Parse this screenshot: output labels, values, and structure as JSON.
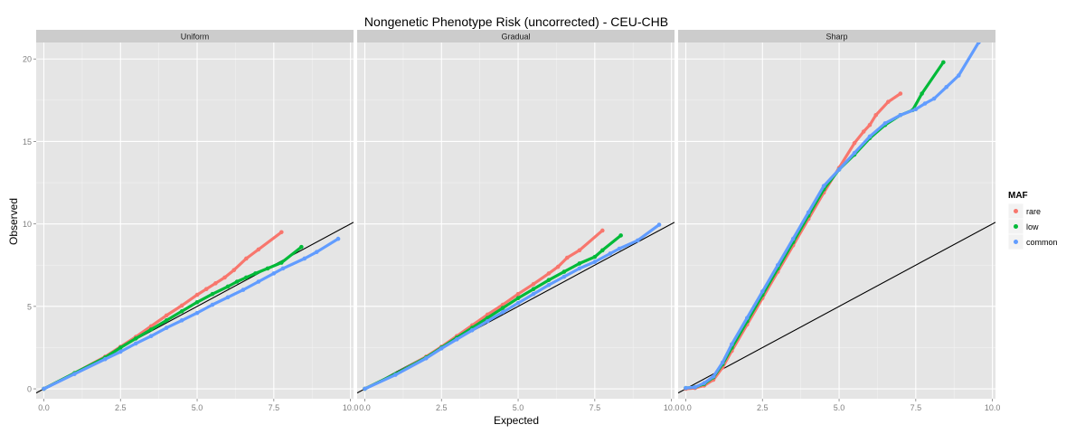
{
  "chart_data": {
    "type": "scatter",
    "title": "Nongenetic Phenotype Risk (uncorrected) - CEU-CHB",
    "xlabel": "Expected",
    "ylabel": "Observed",
    "xlim": [
      -0.25,
      10.1
    ],
    "ylim": [
      -0.6,
      21.0
    ],
    "x_ticks": [
      "0.0",
      "2.5",
      "5.0",
      "7.5",
      "10.0"
    ],
    "y_ticks": [
      "0",
      "5",
      "10",
      "15",
      "20"
    ],
    "grid": true,
    "legend": {
      "title": "MAF",
      "position": "right",
      "entries": [
        "rare",
        "low",
        "common"
      ]
    },
    "colors": {
      "rare": "#F8766D",
      "low": "#00BA38",
      "common": "#619CFF"
    },
    "reference_line": {
      "slope": 1,
      "intercept": 0
    },
    "panels": [
      {
        "label": "Uniform",
        "series": [
          {
            "name": "rare",
            "x": [
              0,
              1,
              2,
              2.5,
              3,
              3.5,
              4,
              4.5,
              5,
              5.3,
              5.6,
              5.9,
              6.2,
              6.6,
              7.0,
              7.75
            ],
            "y": [
              0,
              0.95,
              1.95,
              2.55,
              3.15,
              3.8,
              4.45,
              5.05,
              5.7,
              6.05,
              6.4,
              6.75,
              7.2,
              7.9,
              8.45,
              9.5
            ]
          },
          {
            "name": "low",
            "x": [
              0,
              1,
              2,
              2.5,
              3,
              3.5,
              4,
              4.5,
              5,
              5.5,
              6,
              6.3,
              6.6,
              6.9,
              7.3,
              7.75,
              8.4
            ],
            "y": [
              0,
              0.95,
              1.9,
              2.5,
              3.05,
              3.6,
              4.15,
              4.7,
              5.25,
              5.75,
              6.2,
              6.5,
              6.75,
              7.0,
              7.3,
              7.65,
              8.6
            ]
          },
          {
            "name": "common",
            "x": [
              0,
              1,
              2,
              2.5,
              3,
              3.5,
              4,
              4.5,
              5,
              5.5,
              6,
              6.5,
              7,
              7.5,
              7.8,
              8.5,
              8.9,
              9.6
            ],
            "y": [
              0,
              0.9,
              1.8,
              2.25,
              2.75,
              3.2,
              3.7,
              4.15,
              4.6,
              5.1,
              5.55,
              6.0,
              6.5,
              7.0,
              7.3,
              7.9,
              8.3,
              9.1
            ]
          }
        ]
      },
      {
        "label": "Gradual",
        "series": [
          {
            "name": "rare",
            "x": [
              0,
              1,
              2,
              2.5,
              3,
              3.5,
              4,
              4.5,
              5,
              5.5,
              6,
              6.3,
              6.6,
              7.0,
              7.75
            ],
            "y": [
              0,
              0.9,
              1.95,
              2.55,
              3.2,
              3.85,
              4.5,
              5.1,
              5.75,
              6.35,
              7.0,
              7.4,
              7.95,
              8.4,
              9.6
            ]
          },
          {
            "name": "low",
            "x": [
              0,
              1,
              2,
              2.5,
              3,
              3.5,
              4,
              4.5,
              5,
              5.5,
              6,
              6.5,
              7,
              7.5,
              7.75,
              8.35
            ],
            "y": [
              0,
              0.9,
              1.9,
              2.5,
              3.1,
              3.7,
              4.3,
              4.9,
              5.5,
              6.05,
              6.6,
              7.1,
              7.6,
              8.0,
              8.4,
              9.3
            ]
          },
          {
            "name": "common",
            "x": [
              0,
              1,
              2,
              2.5,
              3,
              3.5,
              4,
              4.5,
              5,
              5.5,
              6,
              6.5,
              7,
              7.5,
              8,
              8.3,
              8.9,
              9.6
            ],
            "y": [
              0,
              0.85,
              1.85,
              2.45,
              3.0,
              3.55,
              4.1,
              4.65,
              5.2,
              5.75,
              6.3,
              6.8,
              7.3,
              7.7,
              8.2,
              8.5,
              9.0,
              9.95
            ]
          }
        ]
      },
      {
        "label": "Sharp",
        "series": [
          {
            "name": "rare",
            "x": [
              0,
              0.3,
              0.6,
              0.9,
              1.2,
              1.5,
              2,
              2.5,
              3,
              3.5,
              4,
              4.5,
              5,
              5.5,
              5.8,
              6.0,
              6.2,
              6.6,
              7.0
            ],
            "y": [
              0,
              0.05,
              0.2,
              0.55,
              1.3,
              2.3,
              3.9,
              5.5,
              7.1,
              8.7,
              10.3,
              11.9,
              13.4,
              14.9,
              15.6,
              16.0,
              16.6,
              17.4,
              17.9
            ]
          },
          {
            "name": "low",
            "x": [
              0,
              0.3,
              0.6,
              0.9,
              1.2,
              1.5,
              2,
              2.5,
              3,
              3.5,
              4,
              4.5,
              5,
              5.5,
              6,
              6.5,
              7,
              7.4,
              7.7,
              8.4
            ],
            "y": [
              0.05,
              0.1,
              0.3,
              0.7,
              1.5,
              2.5,
              4.1,
              5.7,
              7.3,
              8.9,
              10.5,
              12.1,
              13.3,
              14.2,
              15.2,
              16.0,
              16.6,
              16.9,
              17.9,
              19.8
            ]
          },
          {
            "name": "common",
            "x": [
              0,
              0.3,
              0.6,
              0.9,
              1.2,
              1.5,
              2,
              2.5,
              3,
              3.5,
              4,
              4.5,
              5,
              5.5,
              6,
              6.5,
              7,
              7.5,
              7.8,
              8.1,
              8.5,
              8.9,
              9.55
            ],
            "y": [
              0.05,
              0.1,
              0.35,
              0.75,
              1.6,
              2.7,
              4.3,
              5.9,
              7.5,
              9.1,
              10.7,
              12.3,
              13.3,
              14.3,
              15.3,
              16.1,
              16.6,
              16.95,
              17.3,
              17.6,
              18.3,
              19.0,
              21.0
            ]
          }
        ]
      }
    ]
  }
}
